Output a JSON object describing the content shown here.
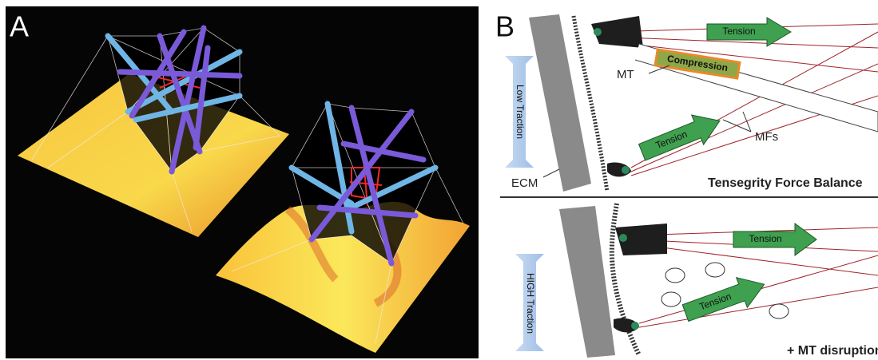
{
  "panel_a": {
    "label": "A"
  },
  "panel_b": {
    "label": "B",
    "top": {
      "tension_top": "Tension",
      "compression": "Compression",
      "mt": "MT",
      "mfs": "MFs",
      "tension_mid": "Tension",
      "traction": "Low Traction",
      "ecm": "ECM",
      "caption": "Tensegrity Force Balance"
    },
    "bottom": {
      "tension_top": "Tension",
      "traction": "HIGH Traction",
      "tension_mid": "Tension",
      "caption": "+ MT disruption"
    }
  }
}
